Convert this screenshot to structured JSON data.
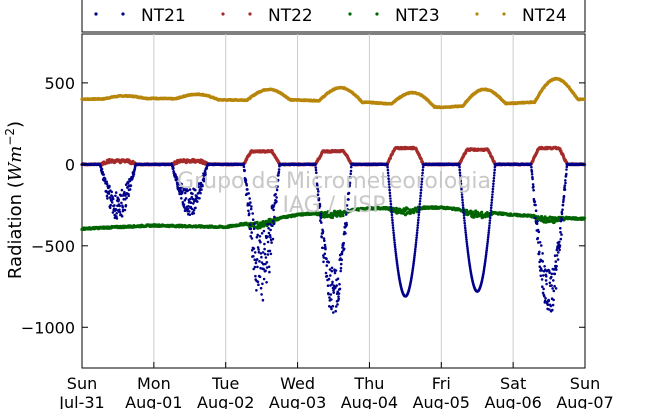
{
  "chart_data": {
    "type": "scatter",
    "ylabel": "Radiation (W m⁻²)",
    "ylabel_parts": {
      "prefix": "Radiation (",
      "unit": "Wm",
      "exponent": "−2",
      "suffix": ")"
    },
    "watermark": [
      "Grupo de Micrometeorologia",
      "IAG / USP"
    ],
    "ylim": [
      -1250,
      800
    ],
    "yticks": [
      500,
      0,
      -500,
      -1000
    ],
    "ytick_labels": [
      "500",
      "0",
      "−500",
      "−1000"
    ],
    "xlim": [
      0,
      7
    ],
    "xticks": [
      {
        "x": 0,
        "day": "Sun",
        "date": "Jul-31"
      },
      {
        "x": 1,
        "day": "Mon",
        "date": "Aug-01"
      },
      {
        "x": 2,
        "day": "Tue",
        "date": "Aug-02"
      },
      {
        "x": 3,
        "day": "Wed",
        "date": "Aug-03"
      },
      {
        "x": 4,
        "day": "Thu",
        "date": "Aug-04"
      },
      {
        "x": 5,
        "day": "Fri",
        "date": "Aug-05"
      },
      {
        "x": 6,
        "day": "Sat",
        "date": "Aug-06"
      },
      {
        "x": 7,
        "day": "Sun",
        "date": "Aug-07"
      }
    ],
    "grid": "vertical",
    "legend_position": "top",
    "series": [
      {
        "name": "NT21",
        "color": "#00008b",
        "daily_min": [
          -300,
          -280,
          -750,
          -850,
          -810,
          -780,
          -850
        ]
      },
      {
        "name": "NT22",
        "color": "#a52a2a",
        "daily_peak": [
          20,
          20,
          80,
          80,
          100,
          90,
          100
        ]
      },
      {
        "name": "NT23",
        "color": "#006400",
        "baseline": [
          -395,
          -375,
          -385,
          -310,
          -270,
          -265,
          -310,
          -335
        ]
      },
      {
        "name": "NT24",
        "color": "#b8860b",
        "baseline": [
          400,
          405,
          395,
          395,
          380,
          350,
          375,
          400
        ],
        "daily_peak": [
          420,
          430,
          460,
          470,
          440,
          460,
          525
        ]
      }
    ]
  }
}
